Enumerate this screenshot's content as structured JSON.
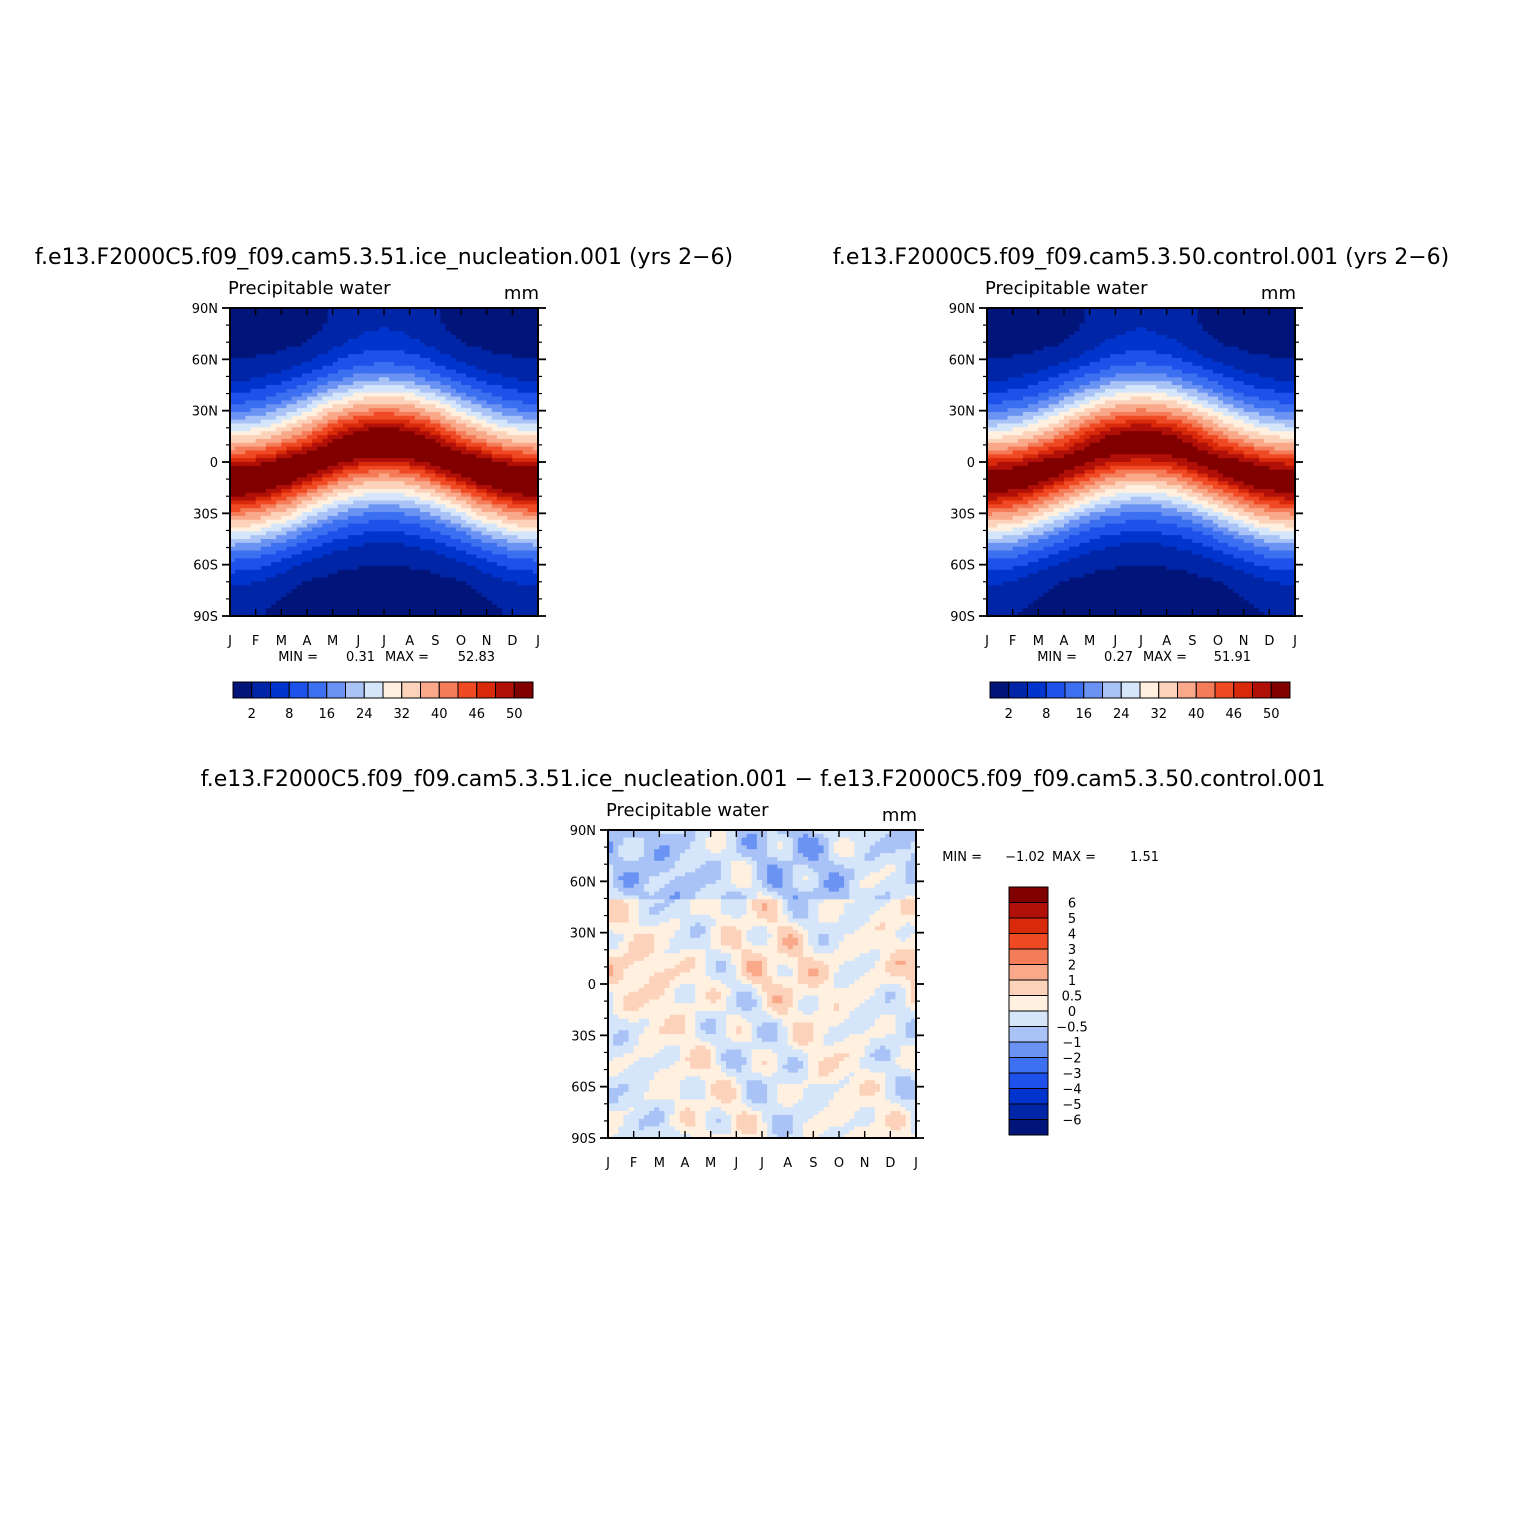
{
  "colors": {
    "abs_palette": [
      "#00147a",
      "#0025a6",
      "#0034cc",
      "#1e50ea",
      "#3d6ff1",
      "#6b93f3",
      "#a9c3f7",
      "#d6e6fa",
      "#fff0e0",
      "#fdd2bb",
      "#f9a98a",
      "#f57c59",
      "#f04a25",
      "#d9290b",
      "#b01008",
      "#800000"
    ],
    "diff_palette": [
      "#00147a",
      "#0025a6",
      "#0034cc",
      "#1e50ea",
      "#3d6ff1",
      "#6b93f3",
      "#a9c3f7",
      "#d6e6fa",
      "#fff0e0",
      "#fdd2bb",
      "#f9a98a",
      "#f57c59",
      "#f04a25",
      "#d9290b",
      "#b01008",
      "#800000"
    ]
  },
  "chart_data": [
    {
      "type": "heatmap",
      "title": "f.e13.F2000C5.f09_f09.cam5.3.51.ice_nucleation.001  (yrs  2−6)",
      "subtitle": "Precipitable  water",
      "units": "mm",
      "x_ticks": [
        "J",
        "F",
        "M",
        "A",
        "M",
        "J",
        "J",
        "A",
        "S",
        "O",
        "N",
        "D",
        "J"
      ],
      "y_ticks": [
        "90N",
        "60N",
        "30N",
        "0",
        "30S",
        "60S",
        "90S"
      ],
      "ylim": [
        -90,
        90
      ],
      "min_label": "MIN =",
      "min_value": "0.31",
      "max_label": "MAX =",
      "max_value": "52.83",
      "data_min": 0.31,
      "data_max": 52.83,
      "contour_levels": [
        2,
        5,
        8,
        12,
        16,
        20,
        24,
        28,
        32,
        36,
        40,
        43,
        46,
        48,
        50
      ],
      "colorbar_labels": [
        "2",
        "8",
        "16",
        "24",
        "32",
        "40",
        "46",
        "50"
      ]
    },
    {
      "type": "heatmap",
      "title": "f.e13.F2000C5.f09_f09.cam5.3.50.control.001  (yrs  2−6)",
      "subtitle": "Precipitable  water",
      "units": "mm",
      "x_ticks": [
        "J",
        "F",
        "M",
        "A",
        "M",
        "J",
        "J",
        "A",
        "S",
        "O",
        "N",
        "D",
        "J"
      ],
      "y_ticks": [
        "90N",
        "60N",
        "30N",
        "0",
        "30S",
        "60S",
        "90S"
      ],
      "ylim": [
        -90,
        90
      ],
      "min_label": "MIN =",
      "min_value": "0.27",
      "max_label": "MAX =",
      "max_value": "51.91",
      "data_min": 0.27,
      "data_max": 51.91,
      "contour_levels": [
        2,
        5,
        8,
        12,
        16,
        20,
        24,
        28,
        32,
        36,
        40,
        43,
        46,
        48,
        50
      ],
      "colorbar_labels": [
        "2",
        "8",
        "16",
        "24",
        "32",
        "40",
        "46",
        "50"
      ]
    },
    {
      "type": "heatmap",
      "title": "f.e13.F2000C5.f09_f09.cam5.3.51.ice_nucleation.001  −  f.e13.F2000C5.f09_f09.cam5.3.50.control.001",
      "subtitle": "Precipitable  water",
      "units": "mm",
      "x_ticks": [
        "J",
        "F",
        "M",
        "A",
        "M",
        "J",
        "J",
        "A",
        "S",
        "O",
        "N",
        "D",
        "J"
      ],
      "y_ticks": [
        "90N",
        "60N",
        "30N",
        "0",
        "30S",
        "60S",
        "90S"
      ],
      "ylim": [
        -90,
        90
      ],
      "min_label": "MIN =",
      "min_value": "−1.02",
      "max_label": "MAX =",
      "max_value": "1.51",
      "data_min": -1.02,
      "data_max": 1.51,
      "contour_levels": [
        -6,
        -5,
        -4,
        -3,
        -2,
        -1,
        -0.5,
        0,
        0.5,
        1,
        2,
        3,
        4,
        5,
        6
      ],
      "colorbar_labels": [
        "6",
        "5",
        "4",
        "3",
        "2",
        "1",
        "0.5",
        "0",
        "−0.5",
        "−1",
        "−2",
        "−3",
        "−4",
        "−5",
        "−6"
      ]
    }
  ]
}
